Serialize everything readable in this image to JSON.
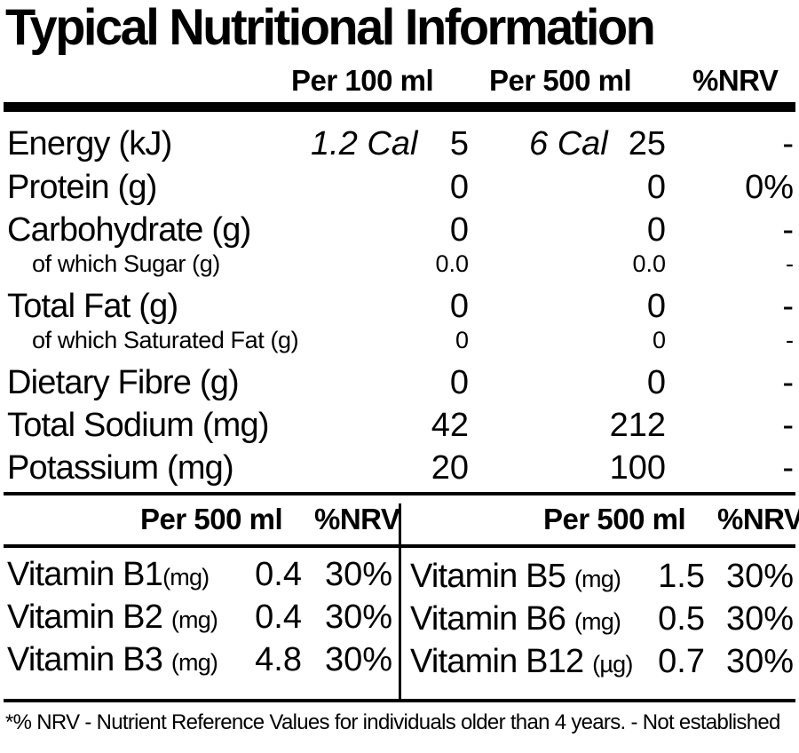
{
  "title": "Typical Nutritional Information",
  "columns": [
    "Per 100 ml",
    "Per 500 ml",
    "%NRV"
  ],
  "nutrients": [
    {
      "label": "Energy (kJ)",
      "per100_cal": "1.2 Cal",
      "per100": "5",
      "per500_cal": "6 Cal",
      "per500": "25",
      "nrv": "-",
      "sub": false
    },
    {
      "label": "Protein (g)",
      "per100": "0",
      "per500": "0",
      "nrv": "0%",
      "sub": false
    },
    {
      "label": "Carbohydrate (g)",
      "per100": "0",
      "per500": "0",
      "nrv": "-",
      "sub": false
    },
    {
      "label": "of which Sugar (g)",
      "per100": "0.0",
      "per500": "0.0",
      "nrv": "-",
      "sub": true
    },
    {
      "label": "Total Fat (g)",
      "per100": "0",
      "per500": "0",
      "nrv": "-",
      "sub": false
    },
    {
      "label": "of which Saturated Fat (g)",
      "per100": "0",
      "per500": "0",
      "nrv": "-",
      "sub": true
    },
    {
      "label": "Dietary Fibre (g)",
      "per100": "0",
      "per500": "0",
      "nrv": "-",
      "sub": false
    },
    {
      "label": "Total Sodium (mg)",
      "per100": "42",
      "per500": "212",
      "nrv": "-",
      "sub": false
    },
    {
      "label": "Potassium (mg)",
      "per100": "20",
      "per500": "100",
      "nrv": "-",
      "sub": false
    }
  ],
  "vitamin_header": {
    "amount": "Per 500 ml",
    "nrv": "%NRV"
  },
  "vitamins_left": [
    {
      "name": "Vitamin B1",
      "unit": "(mg)",
      "amount": "0.4",
      "nrv": "30%"
    },
    {
      "name": "Vitamin B2",
      "unit": "(mg)",
      "amount": "0.4",
      "nrv": "30%"
    },
    {
      "name": "Vitamin B3",
      "unit": "(mg)",
      "amount": "4.8",
      "nrv": "30%"
    }
  ],
  "vitamins_right": [
    {
      "name": "Vitamin B5",
      "unit": "(mg)",
      "amount": "1.5",
      "nrv": "30%"
    },
    {
      "name": "Vitamin B6",
      "unit": "(mg)",
      "amount": "0.5",
      "nrv": "30%"
    },
    {
      "name": "Vitamin B12",
      "unit": "(µg)",
      "amount": "0.7",
      "nrv": "30%"
    }
  ],
  "footnote": "*% NRV - Nutrient Reference Values for individuals older than 4 years. - Not established"
}
